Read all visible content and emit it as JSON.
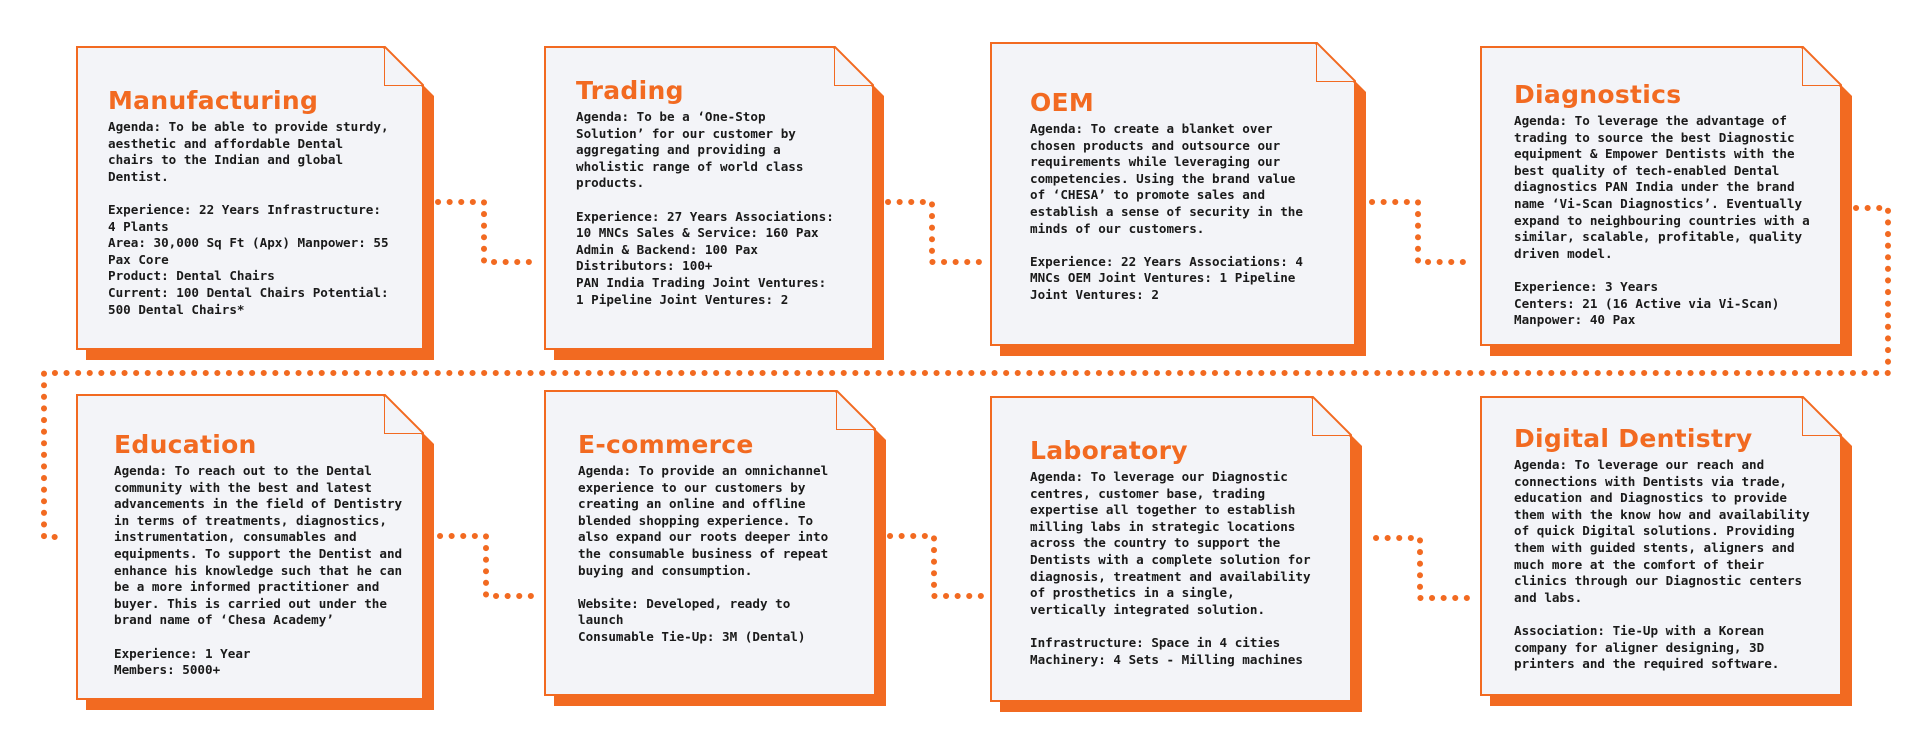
{
  "cards": [
    {
      "title": "Manufacturing",
      "body": "Agenda: To be able to provide sturdy,\naesthetic and affordable Dental\nchairs to the Indian and global\nDentist.\n\nExperience: 22 Years Infrastructure:\n4 Plants\nArea: 30,000 Sq Ft (Apx) Manpower: 55\nPax Core\nProduct: Dental Chairs\nCurrent: 100 Dental Chairs Potential:\n500 Dental Chairs*"
    },
    {
      "title": "Trading",
      "body": "Agenda: To be a ‘One-Stop\nSolution’ for our customer by\naggregating and providing a\nwholistic range of world class\nproducts.\n\nExperience: 27 Years Associations:\n10 MNCs Sales & Service: 160 Pax\nAdmin & Backend: 100 Pax\nDistributors: 100+\nPAN India Trading Joint Ventures:\n1 Pipeline Joint Ventures: 2"
    },
    {
      "title": "OEM",
      "body": "Agenda: To create a blanket over\nchosen products and outsource our\nrequirements while leveraging our\ncompetencies. Using the brand value\nof ‘CHESA’ to promote sales and\nestablish a sense of security in the\nminds of our customers.\n\nExperience: 22 Years Associations: 4\nMNCs OEM Joint Ventures: 1 Pipeline\nJoint Ventures: 2"
    },
    {
      "title": "Diagnostics",
      "body": "Agenda: To leverage the advantage of\ntrading to source the best Diagnostic\nequipment & Empower Dentists with the\nbest quality of tech-enabled Dental\ndiagnostics PAN India under the brand\nname ‘Vi-Scan Diagnostics’. Eventually\nexpand to neighbouring countries with a\nsimilar, scalable, profitable, quality\ndriven model.\n\nExperience: 3 Years\nCenters: 21 (16 Active via Vi-Scan)\nManpower: 40 Pax"
    },
    {
      "title": "Education",
      "body": "Agenda: To reach out to the Dental\ncommunity with the best and latest\nadvancements in the field of Dentistry\nin terms of treatments, diagnostics,\ninstrumentation, consumables and\nequipments. To support the Dentist and\nenhance his knowledge such that he can\nbe a more informed practitioner and\nbuyer. This is carried out under the\nbrand name of ‘Chesa Academy’\n\nExperience: 1 Year\nMembers: 5000+"
    },
    {
      "title": "E-commerce",
      "body": "Agenda: To provide an omnichannel\nexperience to our customers by\ncreating an online and offline\nblended shopping experience. To\nalso expand our roots deeper into\nthe consumable business of repeat\nbuying and consumption.\n\nWebsite: Developed, ready to\nlaunch\nConsumable Tie-Up: 3M (Dental)"
    },
    {
      "title": "Laboratory",
      "body": "Agenda: To leverage our Diagnostic\ncentres, customer base, trading\nexpertise all together to establish\nmilling labs in strategic locations\nacross the country to support the\nDentists with a complete solution for\ndiagnosis, treatment and availability\nof prosthetics in a single,\nvertically integrated solution.\n\nInfrastructure: Space in 4 cities\nMachinery: 4 Sets - Milling machines"
    },
    {
      "title": "Digital Dentistry",
      "body": "Agenda: To leverage our reach and\nconnections with Dentists via trade,\neducation and Diagnostics to provide\nthem with the know how and availability\nof quick Digital solutions. Providing\nthem with guided stents, aligners and\nmuch more at the comfort of their\nclinics through our Diagnostic centers\nand labs.\n\nAssociation: Tie-Up with a Korean\ncompany for aligner designing, 3D\nprinters and the required software."
    }
  ],
  "colors": {
    "accent": "#f26a21",
    "paper": "#f3f4f8",
    "text": "#1a1a1a"
  }
}
